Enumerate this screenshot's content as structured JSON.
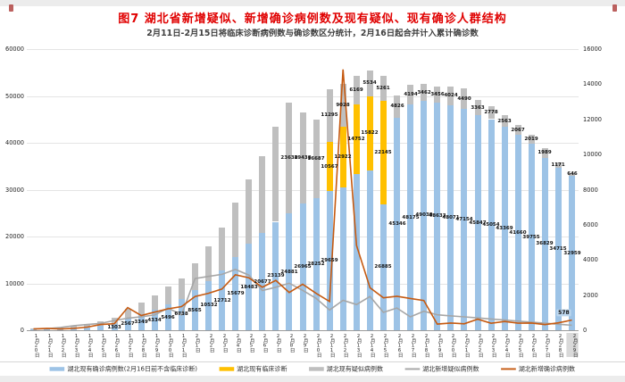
{
  "page": {
    "title": "图7 湖北省新增疑似、新增确诊病例数及现有疑似、现有确诊人群结构",
    "subtitle": "2月11日-2月15日将临床诊断病例数与确诊数区分统计，2月16日起合并计入累计确诊数"
  },
  "chart_data": {
    "type": "bar",
    "overlay": "line",
    "layout": {
      "stacked_bars": true,
      "dual_axis": true,
      "grid": true,
      "legend_position": "bottom"
    },
    "categories": [
      "1月20日",
      "1月21日",
      "1月22日",
      "1月23日",
      "1月24日",
      "1月25日",
      "1月26日",
      "1月27日",
      "1月28日",
      "1月29日",
      "1月30日",
      "1月31日",
      "2月1日",
      "2月2日",
      "2月3日",
      "2月4日",
      "2月5日",
      "2月6日",
      "2月7日",
      "2月8日",
      "2月9日",
      "2月10日",
      "2月11日",
      "2月12日",
      "2月13日",
      "2月14日",
      "2月15日",
      "2月16日",
      "2月17日",
      "2月18日",
      "2月19日",
      "2月20日",
      "2月21日",
      "2月22日",
      "2月23日",
      "2月24日",
      "2月25日",
      "2月26日",
      "2月27日",
      "2月28日",
      "2月29日"
    ],
    "bar_series": [
      {
        "name": "湖北现有确诊病例数(2月16日前不含临床诊断)",
        "color": "#9DC3E6",
        "axis": "left",
        "values": [
          258,
          270,
          375,
          494,
          658,
          942,
          1303,
          2567,
          3349,
          4334,
          5496,
          6738,
          8565,
          10532,
          12712,
          15679,
          18483,
          20677,
          23139,
          24881,
          26965,
          28252,
          29659,
          30543,
          33358,
          34107,
          26885,
          45346,
          48175,
          49030,
          48633,
          48071,
          47154,
          45847,
          45054,
          43369,
          41660,
          39755,
          36829,
          34715,
          32959
        ],
        "show_label": [
          0,
          0,
          0,
          0,
          0,
          0,
          1,
          1,
          1,
          1,
          1,
          1,
          1,
          1,
          1,
          1,
          1,
          1,
          1,
          1,
          1,
          1,
          1,
          0,
          0,
          0,
          1,
          1,
          1,
          1,
          1,
          1,
          1,
          1,
          1,
          1,
          1,
          1,
          1,
          1,
          1
        ]
      },
      {
        "name": "湖北现有临床诊断",
        "color": "#FFC000",
        "axis": "left",
        "values": [
          0,
          0,
          0,
          0,
          0,
          0,
          0,
          0,
          0,
          0,
          0,
          0,
          0,
          0,
          0,
          0,
          0,
          0,
          0,
          0,
          0,
          0,
          10567,
          12922,
          14752,
          15822,
          22145,
          0,
          0,
          0,
          0,
          0,
          0,
          0,
          0,
          0,
          0,
          0,
          0,
          0,
          0
        ],
        "show_label": [
          0,
          0,
          0,
          0,
          0,
          0,
          0,
          0,
          0,
          0,
          0,
          0,
          0,
          0,
          0,
          0,
          0,
          0,
          0,
          0,
          0,
          0,
          1,
          1,
          1,
          1,
          1,
          0,
          0,
          0,
          0,
          0,
          0,
          0,
          0,
          0,
          0,
          0,
          0,
          0,
          0
        ]
      },
      {
        "name": "湖北现有疑似病例数",
        "color": "#BFBFBF",
        "axis": "left",
        "values": [
          105,
          150,
          250,
          408,
          612,
          922,
          1402,
          2077,
          2600,
          3148,
          3806,
          4298,
          5748,
          7309,
          9197,
          11587,
          13745,
          16529,
          20366,
          23638,
          19438,
          16687,
          11295,
          9028,
          6169,
          5534,
          5261,
          4826,
          4194,
          3462,
          3456,
          4024,
          4490,
          3363,
          2778,
          2563,
          2067,
          2019,
          1989,
          1171,
          646
        ],
        "show_label": [
          0,
          0,
          0,
          0,
          0,
          0,
          0,
          0,
          0,
          0,
          0,
          0,
          0,
          0,
          0,
          0,
          0,
          0,
          0,
          1,
          1,
          1,
          1,
          1,
          1,
          1,
          1,
          1,
          1,
          1,
          1,
          1,
          1,
          1,
          1,
          1,
          1,
          1,
          1,
          1,
          1
        ]
      }
    ],
    "line_series": [
      {
        "name": "湖北新增疑似病例数",
        "color": "#A6A6A6",
        "axis": "right",
        "values": [
          72,
          87,
          160,
          257,
          323,
          389,
          554,
          680,
          766,
          871,
          1261,
          876,
          2942,
          3062,
          3182,
          3457,
          3137,
          2262,
          2449,
          2676,
          2272,
          1814,
          1154,
          1700,
          1462,
          1918,
          1016,
          1265,
          762,
          1080,
          880,
          820,
          760,
          700,
          640,
          580,
          520,
          460,
          400,
          340,
          286
        ]
      },
      {
        "name": "湖北新增确诊病例数",
        "color": "#C55A11",
        "axis": "right",
        "values": [
          72,
          105,
          69,
          105,
          180,
          323,
          371,
          1291,
          840,
          1032,
          1220,
          1347,
          1921,
          2103,
          2345,
          3156,
          2987,
          2447,
          2841,
          2147,
          2618,
          2097,
          1638,
          14840,
          4823,
          2420,
          1843,
          1933,
          1807,
          1693,
          349,
          411,
          366,
          630,
          398,
          499,
          401,
          409,
          318,
          423,
          578
        ],
        "end_label": {
          "text": "578",
          "highlight_bg": "#BDD7EE"
        }
      }
    ],
    "y_left": {
      "min": 0,
      "max": 60000,
      "step": 10000,
      "ticks": [
        "0",
        "10000",
        "20000",
        "30000",
        "40000",
        "50000",
        "60000"
      ]
    },
    "y_right": {
      "min": 0,
      "max": 16000,
      "step": 2000,
      "ticks": [
        "0",
        "2000",
        "4000",
        "6000",
        "8000",
        "10000",
        "12000",
        "14000",
        "16000"
      ]
    },
    "x_highlight_last": true,
    "legend": [
      {
        "label": "湖北现有确诊病例数(2月16日前不含临床诊断)",
        "swatch": "bar",
        "color": "#9DC3E6"
      },
      {
        "label": "湖北现有临床诊断",
        "swatch": "bar",
        "color": "#FFC000"
      },
      {
        "label": "湖北现有疑似病例数",
        "swatch": "bar",
        "color": "#BFBFBF"
      },
      {
        "label": "湖北新增疑似病例数",
        "swatch": "line",
        "color": "#A6A6A6"
      },
      {
        "label": "湖北新增确诊病例数",
        "swatch": "line",
        "color": "#C55A11"
      }
    ]
  }
}
